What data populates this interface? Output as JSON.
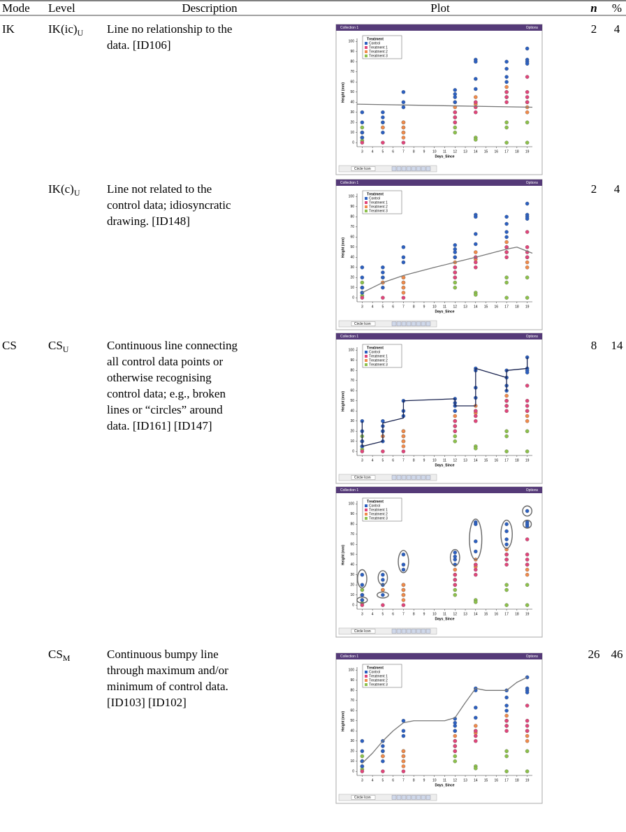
{
  "table": {
    "header": [
      "Mode",
      "Level",
      "Description",
      "Plot",
      "n",
      "%"
    ],
    "rows": [
      {
        "mode": "IK",
        "level": "IK(ic)",
        "level_sub": "U",
        "description": [
          "Line no relationship to the",
          "data. [ID106]"
        ],
        "n": 2,
        "percent": 4
      },
      {
        "level": "IK(c)",
        "level_sub": "U",
        "description": [
          "Line not related to the",
          "control data; idiosyncratic",
          "drawing. [ID148]"
        ],
        "n": 2,
        "percent": 4
      },
      {
        "mode": "CS",
        "level": "CS",
        "level_sub": "U",
        "description": [
          "Continuous line connecting",
          "all control data points or",
          "otherwise recognising",
          "control data; e.g., broken",
          "lines or “circles” around",
          "data. [ID161] [ID147]"
        ],
        "n": 8,
        "percent": 14
      },
      {
        "level": "CS",
        "level_sub": "M",
        "description": [
          "Continuous bumpy line",
          "through maximum and/or",
          "minimum of control data.",
          "[ID103] [ID102]"
        ],
        "n": 26,
        "percent": 46
      }
    ]
  },
  "plot": {
    "window_title": "Collection 1",
    "options": "Options",
    "legend_title": "Treatment",
    "y_label": "Height (mm)",
    "x_label": "Days_Since",
    "toolbar_label": "Circle Icon",
    "xlim": [
      2.5,
      19.5
    ],
    "xticks": [
      3,
      4,
      5,
      6,
      7,
      8,
      9,
      10,
      11,
      12,
      13,
      14,
      15,
      16,
      17,
      18,
      19
    ],
    "ylim": [
      -4,
      103
    ],
    "yticks": [
      0,
      10,
      20,
      30,
      40,
      50,
      60,
      70,
      80,
      90,
      100
    ],
    "series": [
      {
        "name": "Treatment 3",
        "color": "#8cc04b",
        "x": [
          3,
          3,
          3,
          3,
          5,
          5,
          7,
          7,
          7,
          12,
          12,
          12,
          12,
          14,
          14,
          17,
          17,
          17,
          19,
          19
        ],
        "y": [
          15,
          10,
          5,
          2,
          20,
          15,
          20,
          15,
          10,
          25,
          20,
          15,
          10,
          5,
          3,
          20,
          15,
          0,
          20,
          0
        ]
      },
      {
        "name": "Treatment 2",
        "color": "#f08a4b",
        "x": [
          3,
          5,
          7,
          7,
          7,
          7,
          12,
          12,
          12,
          14,
          14,
          14,
          17,
          17,
          17,
          19,
          19,
          19
        ],
        "y": [
          10,
          15,
          20,
          15,
          10,
          5,
          40,
          35,
          30,
          45,
          40,
          38,
          55,
          50,
          45,
          40,
          35,
          30
        ]
      },
      {
        "name": "Treatment 1",
        "color": "#e0457a",
        "x": [
          3,
          5,
          7,
          12,
          12,
          12,
          14,
          14,
          14,
          17,
          17,
          17,
          19,
          19,
          19,
          19
        ],
        "y": [
          0,
          0,
          0,
          30,
          25,
          20,
          40,
          35,
          30,
          50,
          45,
          40,
          65,
          50,
          45,
          40
        ]
      },
      {
        "name": "Control",
        "color": "#2b5fc0",
        "x": [
          3,
          3,
          3,
          3,
          5,
          5,
          5,
          5,
          7,
          7,
          7,
          12,
          12,
          12,
          12,
          14,
          14,
          14,
          14,
          17,
          17,
          17,
          17,
          19,
          19,
          19,
          19
        ],
        "y": [
          30,
          20,
          10,
          5,
          30,
          25,
          20,
          10,
          50,
          40,
          35,
          52,
          48,
          45,
          40,
          82,
          80,
          63,
          53,
          80,
          73,
          65,
          60,
          93,
          82,
          80,
          78
        ]
      }
    ]
  }
}
